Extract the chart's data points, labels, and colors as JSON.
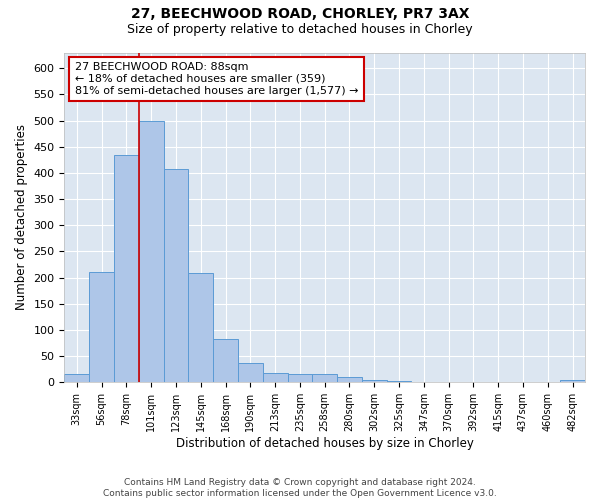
{
  "title1": "27, BEECHWOOD ROAD, CHORLEY, PR7 3AX",
  "title2": "Size of property relative to detached houses in Chorley",
  "xlabel": "Distribution of detached houses by size in Chorley",
  "ylabel": "Number of detached properties",
  "categories": [
    "33sqm",
    "56sqm",
    "78sqm",
    "101sqm",
    "123sqm",
    "145sqm",
    "168sqm",
    "190sqm",
    "213sqm",
    "235sqm",
    "258sqm",
    "280sqm",
    "302sqm",
    "325sqm",
    "347sqm",
    "370sqm",
    "392sqm",
    "415sqm",
    "437sqm",
    "460sqm",
    "482sqm"
  ],
  "values": [
    15,
    210,
    435,
    500,
    408,
    208,
    82,
    37,
    18,
    15,
    15,
    10,
    5,
    3,
    1,
    1,
    0,
    0,
    0,
    0,
    4
  ],
  "bar_color": "#aec6e8",
  "bar_edge_color": "#5b9bd5",
  "vline_x": 2.5,
  "vline_color": "#cc0000",
  "annotation_text": "27 BEECHWOOD ROAD: 88sqm\n← 18% of detached houses are smaller (359)\n81% of semi-detached houses are larger (1,577) →",
  "annotation_box_color": "#ffffff",
  "annotation_box_edge": "#cc0000",
  "ylim": [
    0,
    630
  ],
  "yticks": [
    0,
    50,
    100,
    150,
    200,
    250,
    300,
    350,
    400,
    450,
    500,
    550,
    600
  ],
  "footer1": "Contains HM Land Registry data © Crown copyright and database right 2024.",
  "footer2": "Contains public sector information licensed under the Open Government Licence v3.0.",
  "fig_bg_color": "#ffffff",
  "plot_bg_color": "#dce6f1"
}
